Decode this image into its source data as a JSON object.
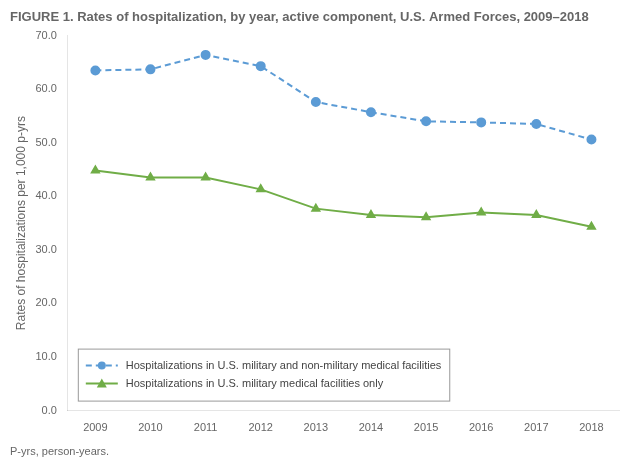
{
  "chart_data": {
    "type": "line",
    "title": "FIGURE 1. Rates of hospitalization, by year, active component, U.S. Armed Forces, 2009–2018",
    "ylabel": "Rates of hospitalizations per 1,000 p-yrs",
    "annotations": [
      "P-yrs, person-years."
    ],
    "x": [
      2009,
      2010,
      2011,
      2012,
      2013,
      2014,
      2015,
      2016,
      2017,
      2018
    ],
    "series": [
      {
        "name": "Hospitalizations in U.S. military and non-military medical facilities",
        "color": "#5B9BD5",
        "marker": "o",
        "line_style": "dashed",
        "values": [
          63.5,
          63.7,
          66.4,
          64.3,
          57.6,
          55.7,
          54.0,
          53.8,
          53.5,
          50.6
        ]
      },
      {
        "name": "Hospitalizations in U.S. military medical facilities only",
        "color": "#70AD47",
        "marker": "^",
        "line_style": "solid",
        "values": [
          44.8,
          43.5,
          43.5,
          41.3,
          37.7,
          36.5,
          36.1,
          37.0,
          36.5,
          34.3
        ]
      }
    ],
    "xlim": [
      2008.5,
      2018.5
    ],
    "xticks": [
      2009,
      2010,
      2011,
      2012,
      2013,
      2014,
      2015,
      2016,
      2017,
      2018
    ],
    "ylim": [
      0.0,
      70.0
    ],
    "yticks": [
      {
        "value": 0.0,
        "label": "0.0"
      },
      {
        "value": 10.0,
        "label": "10.0"
      },
      {
        "value": 20.0,
        "label": "20.0"
      },
      {
        "value": 30.0,
        "label": "30.0"
      },
      {
        "value": 40.0,
        "label": "40.0"
      },
      {
        "value": 50.0,
        "label": "50.0"
      },
      {
        "value": 60.0,
        "label": "60.0"
      },
      {
        "value": 70.0,
        "label": "70.0"
      }
    ],
    "grid": false,
    "legend": "lower left"
  }
}
